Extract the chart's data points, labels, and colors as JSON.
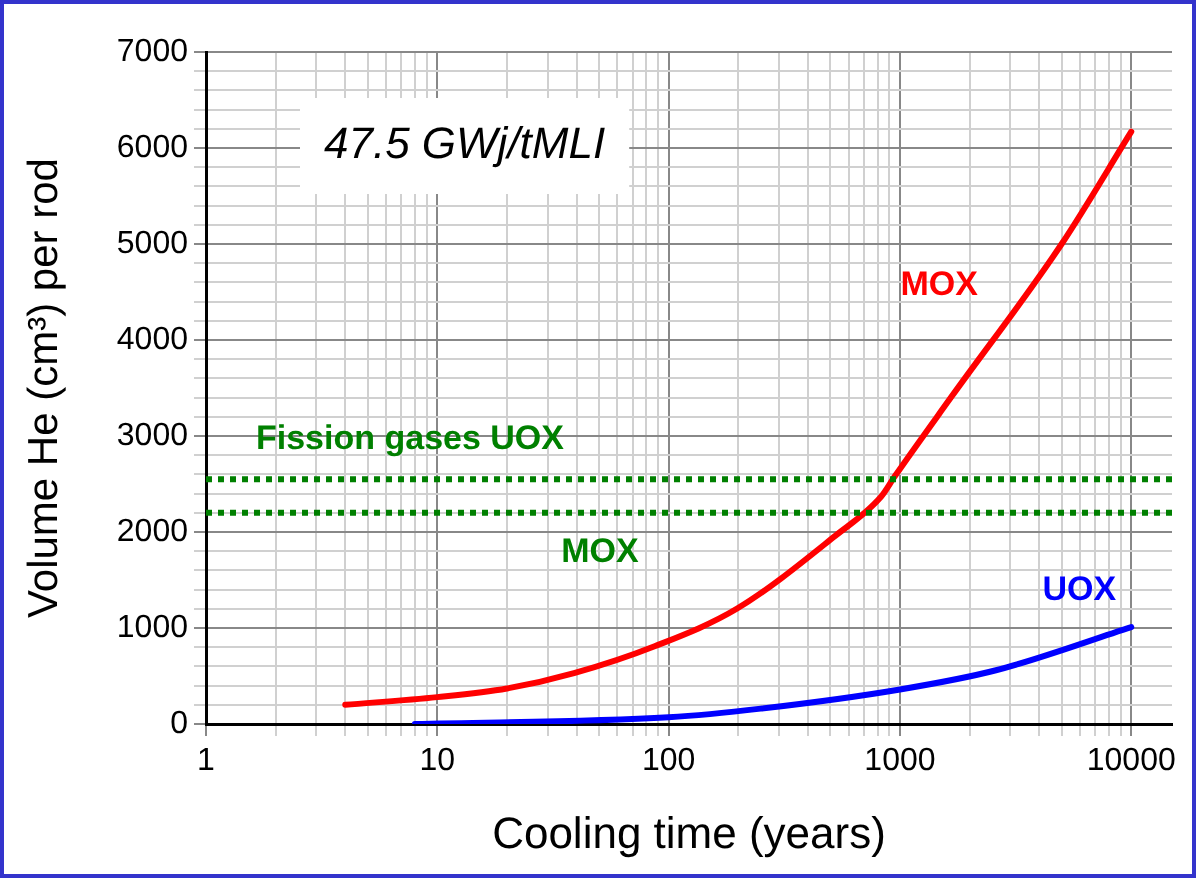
{
  "chart_data": {
    "type": "line",
    "xlabel": "Cooling time (years)",
    "ylabel": "Volume He (cm³) per rod",
    "annotations": [
      "47.5 GWj/tMLI"
    ],
    "log": "x",
    "grid": true,
    "marker": "none",
    "line_style": "solid",
    "xlim": [
      1,
      15000
    ],
    "xticks": [
      1,
      {
        "value": 2,
        "label": null
      },
      {
        "value": 3,
        "label": null
      },
      {
        "value": 4,
        "label": null
      },
      {
        "value": 5,
        "label": null
      },
      {
        "value": 6,
        "label": null
      },
      {
        "value": 7,
        "label": null
      },
      {
        "value": 8,
        "label": null
      },
      {
        "value": 9,
        "label": null
      },
      10,
      {
        "value": 20,
        "label": null
      },
      {
        "value": 30,
        "label": null
      },
      {
        "value": 40,
        "label": null
      },
      {
        "value": 50,
        "label": null
      },
      {
        "value": 60,
        "label": null
      },
      {
        "value": 70,
        "label": null
      },
      {
        "value": 80,
        "label": null
      },
      {
        "value": 90,
        "label": null
      },
      100,
      {
        "value": 200,
        "label": null
      },
      {
        "value": 300,
        "label": null
      },
      {
        "value": 400,
        "label": null
      },
      {
        "value": 500,
        "label": null
      },
      {
        "value": 600,
        "label": null
      },
      {
        "value": 700,
        "label": null
      },
      {
        "value": 800,
        "label": null
      },
      {
        "value": 900,
        "label": null
      },
      1000,
      {
        "value": 2000,
        "label": null
      },
      {
        "value": 3000,
        "label": null
      },
      {
        "value": 4000,
        "label": null
      },
      {
        "value": 5000,
        "label": null
      },
      {
        "value": 6000,
        "label": null
      },
      {
        "value": 7000,
        "label": null
      },
      {
        "value": 8000,
        "label": null
      },
      {
        "value": 9000,
        "label": null
      },
      10000
    ],
    "ylim": [
      0,
      7000
    ],
    "yticks": [
      0,
      {
        "value": 200,
        "label": null
      },
      {
        "value": 400,
        "label": null
      },
      {
        "value": 600,
        "label": null
      },
      {
        "value": 800,
        "label": null
      },
      1000,
      {
        "value": 1200,
        "label": null
      },
      {
        "value": 1400,
        "label": null
      },
      {
        "value": 1600,
        "label": null
      },
      {
        "value": 1800,
        "label": null
      },
      2000,
      {
        "value": 2200,
        "label": null
      },
      {
        "value": 2400,
        "label": null
      },
      {
        "value": 2600,
        "label": null
      },
      {
        "value": 2800,
        "label": null
      },
      3000,
      {
        "value": 3200,
        "label": null
      },
      {
        "value": 3400,
        "label": null
      },
      {
        "value": 3600,
        "label": null
      },
      {
        "value": 3800,
        "label": null
      },
      4000,
      {
        "value": 4200,
        "label": null
      },
      {
        "value": 4400,
        "label": null
      },
      {
        "value": 4600,
        "label": null
      },
      {
        "value": 4800,
        "label": null
      },
      5000,
      {
        "value": 5200,
        "label": null
      },
      {
        "value": 5400,
        "label": null
      },
      {
        "value": 5600,
        "label": null
      },
      {
        "value": 5800,
        "label": null
      },
      6000,
      {
        "value": 6200,
        "label": null
      },
      {
        "value": 6400,
        "label": null
      },
      {
        "value": 6600,
        "label": null
      },
      {
        "value": 6800,
        "label": null
      },
      7000
    ],
    "ref_lines": [
      {
        "axis": "y",
        "value": 2550,
        "label": "Fission gases UOX",
        "color": "#008000",
        "line_style": "dotted"
      },
      {
        "axis": "y",
        "value": 2200,
        "label": "MOX",
        "color": "#008000",
        "line_style": "dotted"
      }
    ],
    "series": [
      {
        "name": "MOX",
        "color": "#ff0000",
        "x": [
          4,
          10,
          20,
          39,
          87,
          197,
          525,
          830,
          950,
          1660,
          5000,
          10000
        ],
        "values": [
          200,
          280,
          370,
          530,
          810,
          1200,
          1960,
          2370,
          2580,
          3400,
          5000,
          6170
        ]
      },
      {
        "name": "UOX",
        "color": "#0000ff",
        "x": [
          8,
          100,
          250,
          1000,
          2600,
          10000
        ],
        "values": [
          0,
          70,
          160,
          360,
          560,
          1010
        ]
      }
    ]
  }
}
